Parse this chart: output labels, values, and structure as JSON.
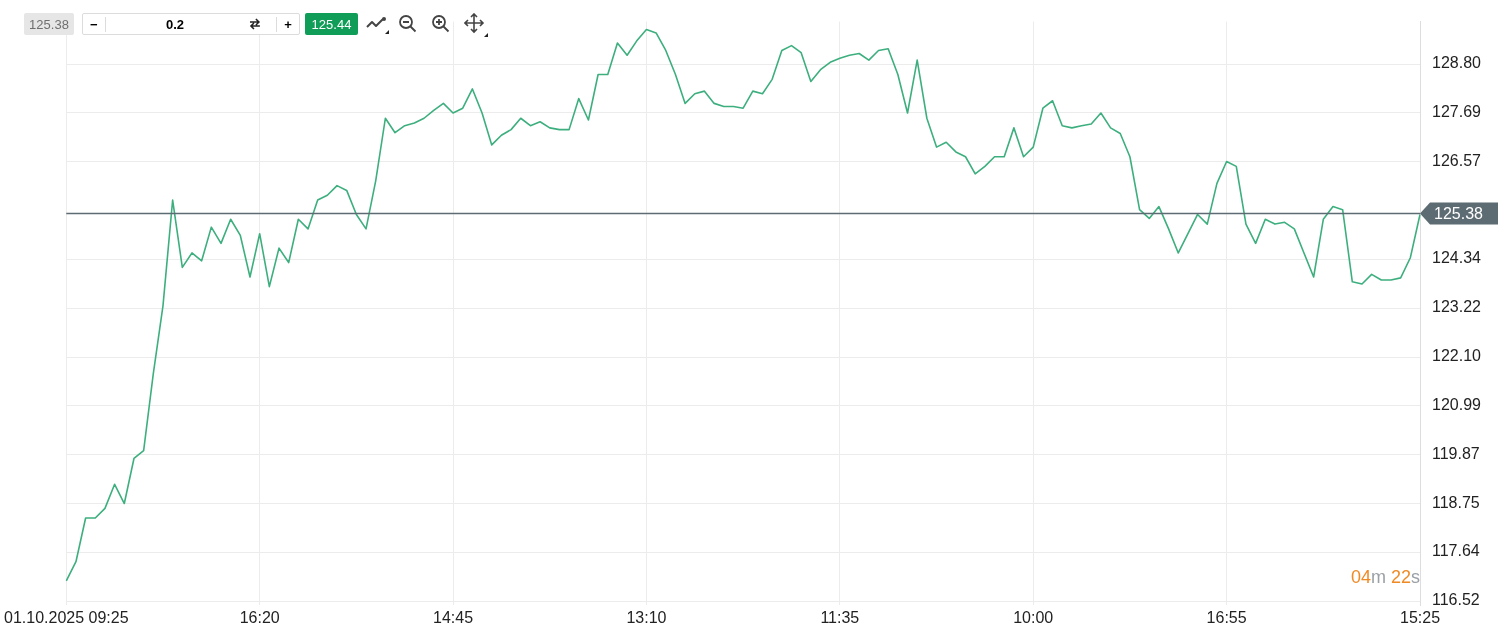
{
  "chart_data": {
    "type": "line",
    "categories": [
      "01.10.2025 09:25",
      null,
      null,
      null,
      null,
      null,
      null,
      null,
      null,
      null,
      null,
      null,
      null,
      null,
      null,
      null,
      null,
      null,
      null,
      null,
      "16:20",
      null,
      null,
      null,
      null,
      null,
      null,
      null,
      null,
      null,
      null,
      null,
      null,
      null,
      null,
      null,
      null,
      null,
      null,
      null,
      "14:45",
      null,
      null,
      null,
      null,
      null,
      null,
      null,
      null,
      null,
      null,
      null,
      null,
      null,
      null,
      null,
      null,
      null,
      null,
      null,
      "13:10",
      null,
      null,
      null,
      null,
      null,
      null,
      null,
      null,
      null,
      null,
      null,
      null,
      null,
      null,
      null,
      null,
      null,
      null,
      null,
      "11:35",
      null,
      null,
      null,
      null,
      null,
      null,
      null,
      null,
      null,
      null,
      null,
      null,
      null,
      null,
      null,
      null,
      null,
      null,
      null,
      "10:00",
      null,
      null,
      null,
      null,
      null,
      null,
      null,
      null,
      null,
      null,
      null,
      null,
      null,
      null,
      null,
      null,
      null,
      null,
      null,
      "16:55",
      null,
      null,
      null,
      null,
      null,
      null,
      null,
      null,
      null,
      null,
      null,
      null,
      null,
      null,
      null,
      null,
      null,
      null,
      null,
      "15:25"
    ],
    "series": [
      {
        "color": "#3daf7e",
        "values": [
          116.98,
          117.42,
          118.42,
          118.42,
          118.64,
          119.19,
          118.75,
          119.78,
          119.96,
          121.72,
          123.27,
          125.69,
          124.15,
          124.48,
          124.3,
          125.07,
          124.7,
          125.25,
          124.88,
          123.93,
          124.92,
          123.71,
          124.59,
          124.26,
          125.25,
          125.03,
          125.69,
          125.8,
          126.02,
          125.91,
          125.36,
          125.03,
          126.13,
          127.56,
          127.23,
          127.39,
          127.45,
          127.56,
          127.74,
          127.9,
          127.68,
          127.79,
          128.23,
          127.68,
          126.95,
          127.17,
          127.3,
          127.56,
          127.39,
          127.48,
          127.34,
          127.3,
          127.3,
          128.01,
          127.52,
          128.56,
          128.56,
          129.28,
          129.0,
          129.33,
          129.59,
          129.51,
          129.11,
          128.56,
          127.9,
          128.12,
          128.18,
          127.9,
          127.83,
          127.83,
          127.79,
          128.18,
          128.12,
          128.45,
          129.11,
          129.22,
          129.06,
          128.4,
          128.67,
          128.84,
          128.93,
          129.0,
          129.04,
          128.89,
          129.11,
          129.15,
          128.56,
          127.68,
          128.89,
          127.56,
          126.9,
          127.01,
          126.79,
          126.68,
          126.29,
          126.46,
          126.68,
          126.68,
          127.34,
          126.68,
          126.9,
          127.79,
          127.96,
          127.39,
          127.34,
          127.39,
          127.43,
          127.68,
          127.34,
          127.21,
          126.68,
          125.47,
          125.27,
          125.54,
          125.03,
          124.48,
          124.92,
          125.36,
          125.14,
          126.07,
          126.57,
          126.46,
          125.14,
          124.7,
          125.25,
          125.14,
          125.18,
          125.03,
          124.48,
          123.93,
          125.25,
          125.54,
          125.47,
          123.82,
          123.77,
          123.99,
          123.86,
          123.86,
          123.91,
          124.37,
          125.36
        ]
      }
    ],
    "ylim": [
      116.43,
      129.77
    ],
    "yticks": [
      116.52,
      117.64,
      118.75,
      119.87,
      120.99,
      {
        "value": 122.1,
        "label": "122.10"
      },
      123.22,
      124.34,
      126.57,
      127.69,
      {
        "value": 128.8,
        "label": "128.80"
      }
    ],
    "grid": true,
    "legend": false,
    "marker": "none",
    "line_style": "solid",
    "ref_lines": [
      {
        "axis": "y",
        "value": 125.38,
        "label": "125.38",
        "color": "#5d6b73"
      }
    ],
    "annotations": [
      "125.38",
      "−",
      "0.2",
      "+",
      "125.44",
      "04m 22s"
    ]
  }
}
